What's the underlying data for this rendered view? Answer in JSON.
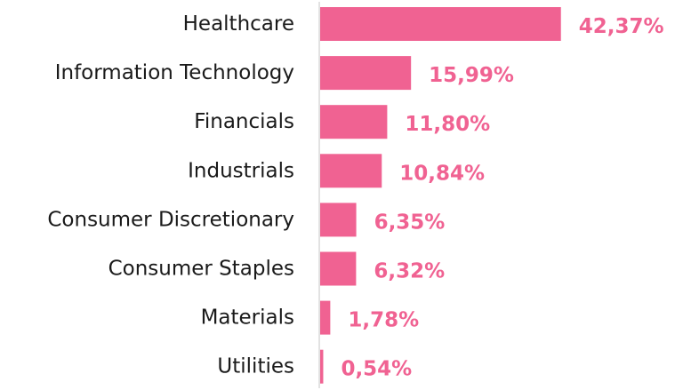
{
  "colors": {
    "bar": "#f06292",
    "label": "#f06292",
    "axis": "#d9d9d9"
  },
  "chart_data": {
    "type": "bar",
    "orientation": "horizontal",
    "categories": [
      "Healthcare",
      "Information Technology",
      "Financials",
      "Industrials",
      "Consumer Discretionary",
      "Consumer Staples",
      "Materials",
      "Utilities"
    ],
    "values": [
      42.37,
      15.99,
      11.8,
      10.84,
      6.35,
      6.32,
      1.78,
      0.54
    ],
    "value_labels": [
      "42,37%",
      "15,99%",
      "11,80%",
      "10,84%",
      "6,35%",
      "6,32%",
      "1,78%",
      "0,54%"
    ],
    "unit": "%",
    "xlim": [
      0,
      50
    ],
    "grid": false,
    "legend": "none"
  }
}
